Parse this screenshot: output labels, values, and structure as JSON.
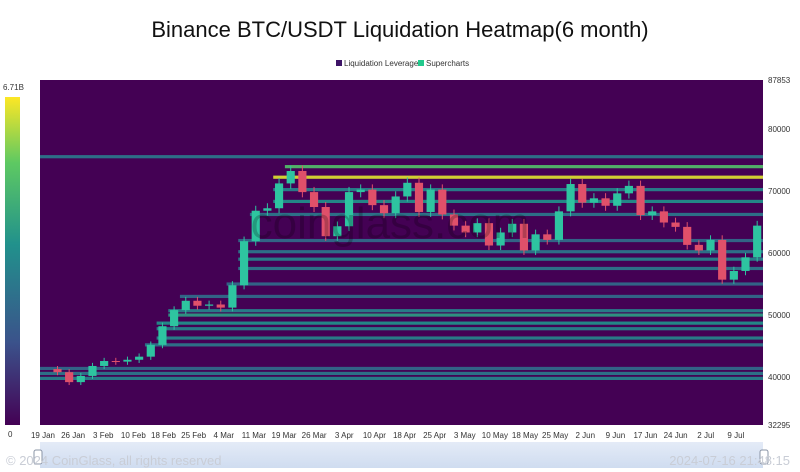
{
  "chart_data": {
    "type": "heatmap",
    "title": "Binance BTC/USDT Liquidation Heatmap(6 month)",
    "legend": [
      {
        "name": "Liquidation Leverage",
        "color": "#3d1366"
      },
      {
        "name": "Supercharts",
        "color": "#22c98c"
      }
    ],
    "legend_position": "top-center",
    "y_axis": {
      "min": 32295,
      "max": 87853,
      "ticks": [
        40000,
        50000,
        60000,
        70000,
        80000
      ],
      "min_label": "32295",
      "max_label": "87853"
    },
    "x_axis": {
      "labels": [
        "19 Jan",
        "26 Jan",
        "3 Feb",
        "10 Feb",
        "18 Feb",
        "25 Feb",
        "4 Mar",
        "11 Mar",
        "19 Mar",
        "26 Mar",
        "3 Apr",
        "10 Apr",
        "18 Apr",
        "25 Apr",
        "3 May",
        "10 May",
        "18 May",
        "25 May",
        "2 Jun",
        "9 Jun",
        "17 Jun",
        "24 Jun",
        "2 Jul",
        "9 Jul"
      ]
    },
    "color_scale": {
      "max_label": "6.71B",
      "min_label": "0",
      "colors": [
        "#440154",
        "#3b528b",
        "#21918c",
        "#5ec962",
        "#fde725"
      ]
    },
    "price_series": [
      41300,
      40800,
      39200,
      40200,
      41800,
      42600,
      42500,
      42800,
      43300,
      45200,
      48200,
      50800,
      52300,
      51500,
      51700,
      51200,
      54800,
      61900,
      66800,
      67200,
      71200,
      73200,
      69800,
      67400,
      62700,
      64300,
      69800,
      70200,
      67700,
      66400,
      69100,
      71300,
      66600,
      70200,
      66200,
      64400,
      63300,
      64800,
      61200,
      63300,
      64700,
      60400,
      63000,
      62100,
      66700,
      71100,
      68100,
      68800,
      67600,
      69600,
      70800,
      66100,
      66700,
      64900,
      64200,
      61300,
      60400,
      62100,
      55700,
      57100,
      59300,
      64400
    ],
    "bands": [
      {
        "price": 39800,
        "intensity": 0.45
      },
      {
        "price": 40600,
        "intensity": 0.4
      },
      {
        "price": 41400,
        "intensity": 0.35
      },
      {
        "price": 45200,
        "intensity": 0.4
      },
      {
        "price": 46300,
        "intensity": 0.45
      },
      {
        "price": 47800,
        "intensity": 0.45
      },
      {
        "price": 48700,
        "intensity": 0.5
      },
      {
        "price": 50000,
        "intensity": 0.55
      },
      {
        "price": 50700,
        "intensity": 0.45
      },
      {
        "price": 53000,
        "intensity": 0.35
      },
      {
        "price": 55000,
        "intensity": 0.35
      },
      {
        "price": 57500,
        "intensity": 0.4
      },
      {
        "price": 59000,
        "intensity": 0.45
      },
      {
        "price": 60200,
        "intensity": 0.4
      },
      {
        "price": 62000,
        "intensity": 0.35
      },
      {
        "price": 66200,
        "intensity": 0.4
      },
      {
        "price": 68300,
        "intensity": 0.5
      },
      {
        "price": 70200,
        "intensity": 0.45
      },
      {
        "price": 72200,
        "intensity": 0.95
      },
      {
        "price": 73900,
        "intensity": 0.7
      },
      {
        "price": 75500,
        "intensity": 0.4
      }
    ]
  },
  "watermark": "coinglass.com",
  "footer": {
    "left": "© 2024 CoinGlass, all rights reserved",
    "right": "2024-07-16 21:48:15"
  }
}
